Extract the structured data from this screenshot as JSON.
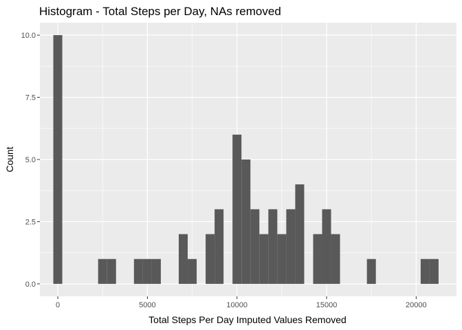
{
  "chart_data": {
    "type": "bar",
    "title": "Histogram - Total Steps per Day, NAs removed",
    "xlabel": "Total Steps Per Day Imputed Values Removed",
    "ylabel": "Count",
    "bin_width": 500,
    "bins": [
      {
        "x": 0,
        "count": 10
      },
      {
        "x": 2500,
        "count": 1
      },
      {
        "x": 3000,
        "count": 1
      },
      {
        "x": 4500,
        "count": 1
      },
      {
        "x": 5000,
        "count": 1
      },
      {
        "x": 5500,
        "count": 1
      },
      {
        "x": 7000,
        "count": 2
      },
      {
        "x": 7500,
        "count": 1
      },
      {
        "x": 8500,
        "count": 2
      },
      {
        "x": 9000,
        "count": 3
      },
      {
        "x": 10000,
        "count": 6
      },
      {
        "x": 10500,
        "count": 5
      },
      {
        "x": 11000,
        "count": 3
      },
      {
        "x": 11500,
        "count": 2
      },
      {
        "x": 12000,
        "count": 3
      },
      {
        "x": 12500,
        "count": 2
      },
      {
        "x": 13000,
        "count": 3
      },
      {
        "x": 13500,
        "count": 4
      },
      {
        "x": 14500,
        "count": 2
      },
      {
        "x": 15000,
        "count": 3
      },
      {
        "x": 15500,
        "count": 2
      },
      {
        "x": 17500,
        "count": 1
      },
      {
        "x": 20500,
        "count": 1
      },
      {
        "x": 21000,
        "count": 1
      }
    ],
    "xlim": [
      -1000,
      22250
    ],
    "ylim": [
      -0.5,
      10.5
    ],
    "x_ticks": [
      0,
      5000,
      10000,
      15000,
      20000
    ],
    "x_tick_labels": [
      "0",
      "5000",
      "10000",
      "15000",
      "20000"
    ],
    "y_ticks": [
      0,
      2.5,
      5,
      7.5,
      10
    ],
    "y_tick_labels": [
      "0.0",
      "2.5",
      "5.0",
      "7.5",
      "10.0"
    ],
    "grid": true,
    "colors": {
      "bar": "#595959",
      "panel": "#ebebeb",
      "grid_major": "#ffffff",
      "tick_mark": "#333333"
    }
  }
}
